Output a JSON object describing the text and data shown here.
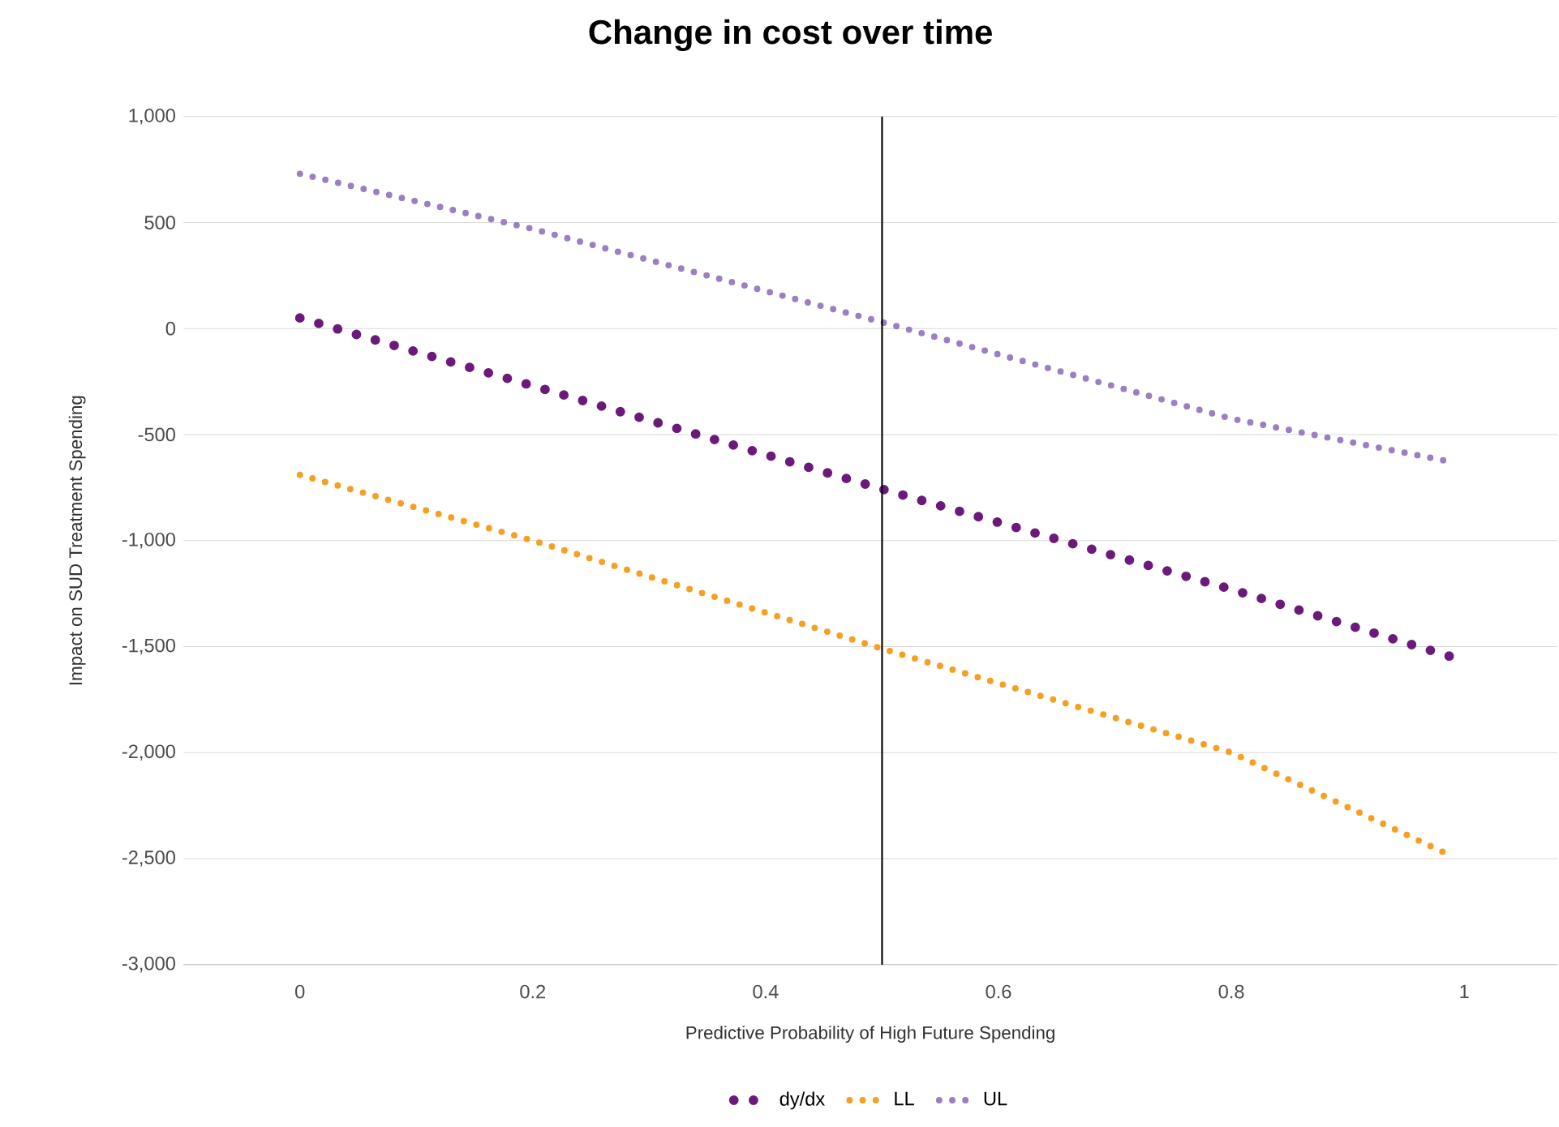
{
  "chart_data": {
    "type": "line",
    "title": "Change in cost over time",
    "xlabel": "Predictive Probability of High Future Spending",
    "ylabel": "Impact on SUD Treatment Spending",
    "series": [
      {
        "name": "dy/dx",
        "color": "#6a1b7a",
        "x": [
          0,
          0.2,
          0.5,
          0.8,
          0.99
        ],
        "values": [
          50,
          -270,
          -757,
          -1230,
          -1550
        ]
      },
      {
        "name": "LL",
        "color": "#f5a023",
        "x": [
          0,
          0.2,
          0.5,
          0.8,
          0.99
        ],
        "values": [
          -690,
          -1000,
          -1510,
          -2000,
          -2490
        ]
      },
      {
        "name": "UL",
        "color": "#9b7fc0",
        "x": [
          0,
          0.2,
          0.5,
          0.8,
          0.99
        ],
        "values": [
          730,
          470,
          30,
          -425,
          -630
        ]
      }
    ],
    "xlim": [
      -0.1,
      1.08
    ],
    "ylim": [
      -3000,
      1000
    ],
    "xticks": [
      0,
      0.2,
      0.4,
      0.6,
      0.8,
      1
    ],
    "yticks": [
      {
        "value": -3000,
        "label": "-3,000"
      },
      {
        "value": -2500,
        "label": "-2,500"
      },
      {
        "value": -2000,
        "label": "-2,000"
      },
      {
        "value": -1500,
        "label": "-1,500"
      },
      {
        "value": -1000,
        "label": "-1,000"
      },
      {
        "value": -500,
        "label": "-500"
      },
      0,
      500,
      {
        "value": 1000,
        "label": "1,000"
      }
    ],
    "ref_lines": [
      {
        "axis": "x",
        "value": 0.5,
        "color": "#000000"
      }
    ],
    "grid": "y",
    "legend": "bottom",
    "marker": "none",
    "line_style": "dotted"
  }
}
